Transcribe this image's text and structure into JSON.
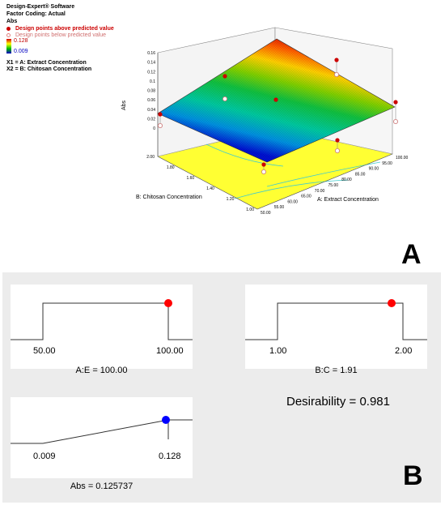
{
  "header": {
    "software": "Design-Expert® Software",
    "factor_coding": "Factor Coding: Actual",
    "response": "Abs",
    "legend_above": "Design points above predicted value",
    "legend_below": "Design points below predicted value",
    "scale_max": "0.128",
    "scale_min": "0.009",
    "x1": "X1 = A: Extract Concentration",
    "x2": "X2 = B: Chitosan Concentration"
  },
  "colors": {
    "above_point": "#cc0000",
    "below_point": "#f4b3b3",
    "scale_top": "#d40000",
    "scale_bottom": "#0000c8",
    "floor": "#ffff33",
    "desirability_point_factor": "#ff0000",
    "desirability_point_response": "#0000ff"
  },
  "chart_data": [
    {
      "type": "surface3d",
      "z_label": "Abs",
      "x_label": "A: Extract Concentration",
      "y_label": "B: Chitosan Concentration",
      "z_ticks": [
        "0",
        "0.02",
        "0.04",
        "0.06",
        "0.08",
        "0.1",
        "0.12",
        "0.14",
        "0.16"
      ],
      "x_ticks": [
        "50.00",
        "55.00",
        "60.00",
        "65.00",
        "70.00",
        "75.00",
        "80.00",
        "85.00",
        "90.00",
        "95.00",
        "100.00"
      ],
      "y_ticks": [
        "1.00",
        "1.20",
        "1.40",
        "1.60",
        "1.80",
        "2.00"
      ],
      "zlim": [
        0,
        0.16
      ],
      "xlim": [
        50,
        100
      ],
      "ylim": [
        1,
        2
      ],
      "surface_corners": [
        {
          "x": 50,
          "y": 1,
          "z": 0.009
        },
        {
          "x": 100,
          "y": 1,
          "z": 0.045
        },
        {
          "x": 100,
          "y": 2,
          "z": 0.128
        },
        {
          "x": 50,
          "y": 2,
          "z": 0.05
        }
      ]
    },
    {
      "type": "desirability_ramps",
      "panel_label": "B",
      "plots": [
        {
          "name": "A:E",
          "low": "50.00",
          "high": "100.00",
          "value_label": "A:E = 100.00",
          "value": 100.0,
          "point_color": "red"
        },
        {
          "name": "B:C",
          "low": "1.00",
          "high": "2.00",
          "value_label": "B:C = 1.91",
          "value": 1.91,
          "point_color": "red"
        },
        {
          "name": "Abs",
          "low": "0.009",
          "high": "0.128",
          "value_label": "Abs = 0.125737",
          "value": 0.125737,
          "point_color": "blue"
        }
      ],
      "desirability_label": "Desirability = 0.981",
      "desirability": 0.981
    }
  ],
  "panel_a_label": "A",
  "panel_b_label": "B"
}
